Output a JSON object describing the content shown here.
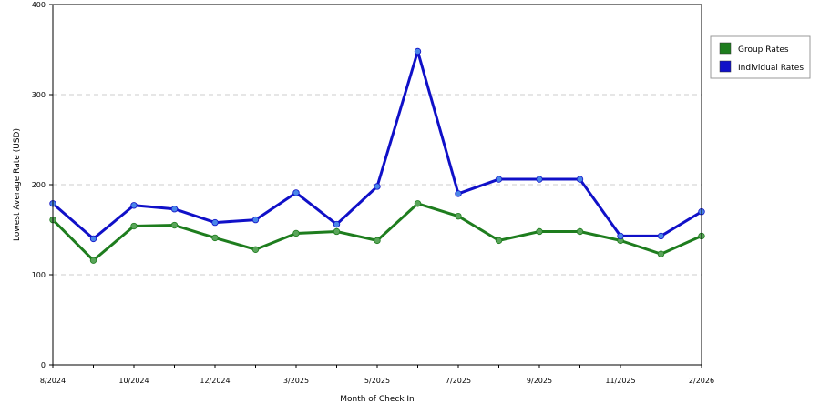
{
  "chart_data": {
    "type": "line",
    "xlabel": "Month of Check In",
    "ylabel": "Lowest Average Rate (USD)",
    "ylim": [
      0,
      400
    ],
    "yticks": [
      0,
      100,
      200,
      300,
      400
    ],
    "grid": true,
    "legend_position": "right",
    "x": [
      "8/2024",
      "9/2024",
      "10/2024",
      "11/2024",
      "12/2024",
      "1/2025",
      "3/2025",
      "4/2025",
      "5/2025",
      "6/2025",
      "7/2025",
      "8/2025",
      "9/2025",
      "10/2025",
      "11/2025",
      "12/2025",
      "2/2026"
    ],
    "x_tick_labels": [
      {
        "index": 0,
        "label": "8/2024"
      },
      {
        "index": 2,
        "label": "10/2024"
      },
      {
        "index": 4,
        "label": "12/2024"
      },
      {
        "index": 6,
        "label": "3/2025"
      },
      {
        "index": 8,
        "label": "5/2025"
      },
      {
        "index": 10,
        "label": "7/2025"
      },
      {
        "index": 12,
        "label": "9/2025"
      },
      {
        "index": 14,
        "label": "11/2025"
      },
      {
        "index": 16,
        "label": "2/2026"
      }
    ],
    "series": [
      {
        "name": "Group Rates",
        "color": "#1e7d1e",
        "marker_color": "#5aa55a",
        "values": [
          161,
          116,
          154,
          155,
          141,
          128,
          146,
          148,
          138,
          179,
          165,
          138,
          148,
          148,
          138,
          123,
          143
        ]
      },
      {
        "name": "Individual Rates",
        "color": "#1010c8",
        "marker_color": "#4a86e8",
        "values": [
          179,
          140,
          177,
          173,
          158,
          161,
          191,
          156,
          198,
          348,
          190,
          206,
          206,
          206,
          143,
          143,
          170
        ]
      }
    ]
  }
}
